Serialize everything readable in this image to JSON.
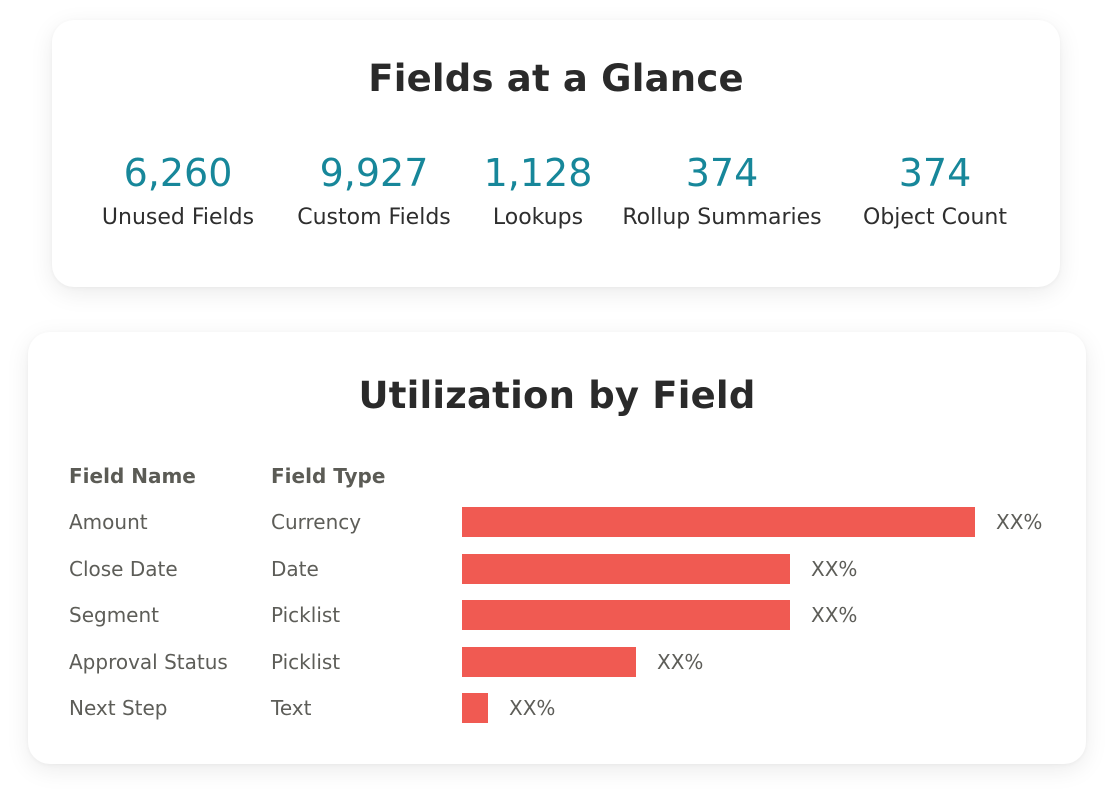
{
  "glance": {
    "title": "Fields at a Glance",
    "stats": [
      {
        "value": "6,260",
        "label": "Unused Fields"
      },
      {
        "value": "9,927",
        "label": "Custom Fields"
      },
      {
        "value": "1,128",
        "label": "Lookups"
      },
      {
        "value": "374",
        "label": "Rollup Summaries"
      },
      {
        "value": "374",
        "label": "Object Count"
      }
    ]
  },
  "utilization": {
    "title": "Utilization by Field",
    "columns": {
      "name": "Field Name",
      "type": "Field Type"
    },
    "rows": [
      {
        "name": "Amount",
        "type": "Currency",
        "label": "XX%"
      },
      {
        "name": "Close Date",
        "type": "Date",
        "label": "XX%"
      },
      {
        "name": "Segment",
        "type": "Picklist",
        "label": "XX%"
      },
      {
        "name": "Approval Status",
        "type": "Picklist",
        "label": "XX%"
      },
      {
        "name": "Next Step",
        "type": "Text",
        "label": "XX%"
      }
    ]
  },
  "colors": {
    "accent": "#17879a",
    "bar": "#f05a52"
  },
  "chart_data": {
    "type": "bar",
    "categories": [
      "Amount",
      "Close Date",
      "Segment",
      "Approval Status",
      "Next Step"
    ],
    "values": [
      100,
      64,
      64,
      34,
      5
    ],
    "data_labels": [
      "XX%",
      "XX%",
      "XX%",
      "XX%",
      "XX%"
    ]
  }
}
